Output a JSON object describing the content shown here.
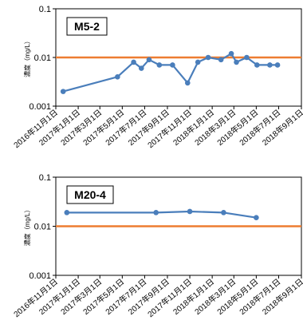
{
  "chart_data": [
    {
      "type": "line",
      "title": "M5-2",
      "ylabel": "濃度（mg/L）",
      "yscale": "log",
      "ylim": [
        0.001,
        0.1
      ],
      "yticks": [
        "0.001",
        "0.01",
        "0.1"
      ],
      "xlim": [
        "2016-11-01",
        "2018-09-01"
      ],
      "xticks": [
        "2016年11月1日",
        "2017年1月1日",
        "2017年3月1日",
        "2017年5月1日",
        "2017年7月1日",
        "2017年9月1日",
        "2017年11月1日",
        "2018年1月1日",
        "2018年3月1日",
        "2018年5月1日",
        "2018年7月1日",
        "2018年9月1日"
      ],
      "series": [
        {
          "color": "#4a7ebb",
          "x": [
            "2016-11-21",
            "2017-04-18",
            "2017-06-01",
            "2017-06-22",
            "2017-07-13",
            "2017-08-10",
            "2017-09-15",
            "2017-10-26",
            "2017-11-23",
            "2017-12-21",
            "2018-01-25",
            "2018-02-22",
            "2018-03-08",
            "2018-04-05",
            "2018-05-03",
            "2018-06-07",
            "2018-06-28"
          ],
          "values": [
            0.002,
            0.004,
            0.008,
            0.006,
            0.009,
            0.007,
            0.007,
            0.003,
            0.008,
            0.01,
            0.009,
            0.012,
            0.008,
            0.01,
            0.007,
            0.007,
            0.007
          ]
        }
      ],
      "reference_line": {
        "value": 0.01,
        "color": "#ed7d31"
      }
    },
    {
      "type": "line",
      "title": "M20-4",
      "ylabel": "濃度（mg/L）",
      "yscale": "log",
      "ylim": [
        0.001,
        0.1
      ],
      "yticks": [
        "0.001",
        "0.01",
        "0.1"
      ],
      "xlim": [
        "2016-11-01",
        "2018-09-01"
      ],
      "xticks": [
        "2016年11月1日",
        "2017年1月1日",
        "2017年3月1日",
        "2017年5月1日",
        "2017年7月1日",
        "2017年9月1日",
        "2017年11月1日",
        "2018年1月1日",
        "2018年3月1日",
        "2018年5月1日",
        "2018年7月1日",
        "2018年9月1日"
      ],
      "series": [
        {
          "color": "#4a7ebb",
          "x": [
            "2016-12-01",
            "2017-08-01",
            "2017-11-01",
            "2018-02-01",
            "2018-05-01"
          ],
          "values": [
            0.019,
            0.019,
            0.02,
            0.019,
            0.015
          ]
        }
      ],
      "reference_line": {
        "value": 0.01,
        "color": "#ed7d31"
      }
    }
  ]
}
